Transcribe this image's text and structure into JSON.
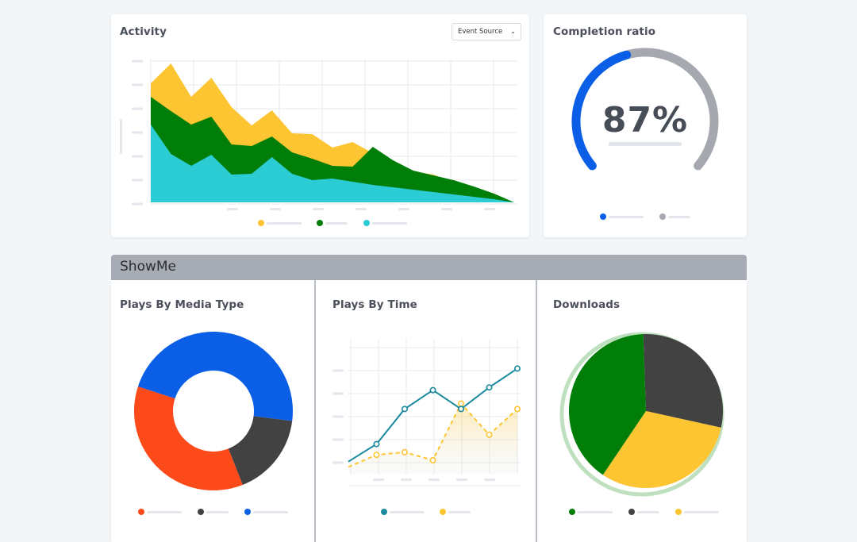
{
  "activity": {
    "title": "Activity",
    "dropdown": {
      "label": "Event Source",
      "chevron": "chevron-down-icon"
    }
  },
  "completion": {
    "title": "Completion ratio",
    "value": "87%",
    "ratio": 0.87
  },
  "section": {
    "title": "ShowMe"
  },
  "plays_media": {
    "title": "Plays By Media Type"
  },
  "plays_time": {
    "title": "Plays By Time"
  },
  "downloads": {
    "title": "Downloads"
  },
  "colors": {
    "yellow": "#fcc531",
    "green": "#007e08",
    "cyan": "#2bccd4",
    "blue": "#0a5fe6",
    "orange": "#fc4a1a",
    "dark": "#424242",
    "teal": "#1a8a9e",
    "gray": "#a5a8ae"
  },
  "chart_data": [
    {
      "type": "area",
      "name": "activity",
      "x": [
        0,
        1,
        2,
        3,
        4,
        5,
        6,
        7,
        8,
        9,
        10,
        11,
        12,
        13,
        14,
        15,
        16,
        17,
        18
      ],
      "series": [
        {
          "color": "#2bccd4",
          "values": [
            98,
            61,
            46,
            60,
            35,
            36,
            57,
            36,
            28,
            30,
            26,
            22,
            19,
            16,
            13,
            10,
            7,
            4,
            0
          ]
        },
        {
          "color": "#007e08",
          "values": [
            133,
            115,
            98,
            108,
            73,
            71,
            83,
            63,
            55,
            46,
            45,
            70,
            53,
            40,
            34,
            28,
            20,
            11,
            0
          ]
        },
        {
          "color": "#fcc531",
          "values": [
            150,
            175,
            133,
            157,
            120,
            97,
            116,
            87,
            86,
            69,
            76,
            62,
            52,
            39,
            35,
            25,
            15,
            5,
            0
          ]
        }
      ],
      "ylim": [
        0,
        180
      ]
    },
    {
      "type": "pie",
      "name": "plays-by-media-type",
      "donut": true,
      "slices": [
        {
          "color": "#0a5fe6",
          "value": 47
        },
        {
          "color": "#424242",
          "value": 17
        },
        {
          "color": "#fc4a1a",
          "value": 36
        }
      ]
    },
    {
      "type": "line",
      "name": "plays-by-time",
      "x": [
        0,
        1,
        2,
        3,
        4,
        5,
        6
      ],
      "series": [
        {
          "color": "#1a8a9e",
          "values": [
            9,
            22,
            48,
            62,
            48,
            64,
            78
          ]
        },
        {
          "color": "#fcc531",
          "values": [
            5,
            14,
            16,
            10,
            52,
            29,
            48
          ]
        }
      ],
      "ylim": [
        0,
        100
      ]
    },
    {
      "type": "pie",
      "name": "downloads",
      "slices": [
        {
          "color": "#424242",
          "value": 29
        },
        {
          "color": "#fcc531",
          "value": 31
        },
        {
          "color": "#007e08",
          "value": 40
        }
      ]
    }
  ]
}
